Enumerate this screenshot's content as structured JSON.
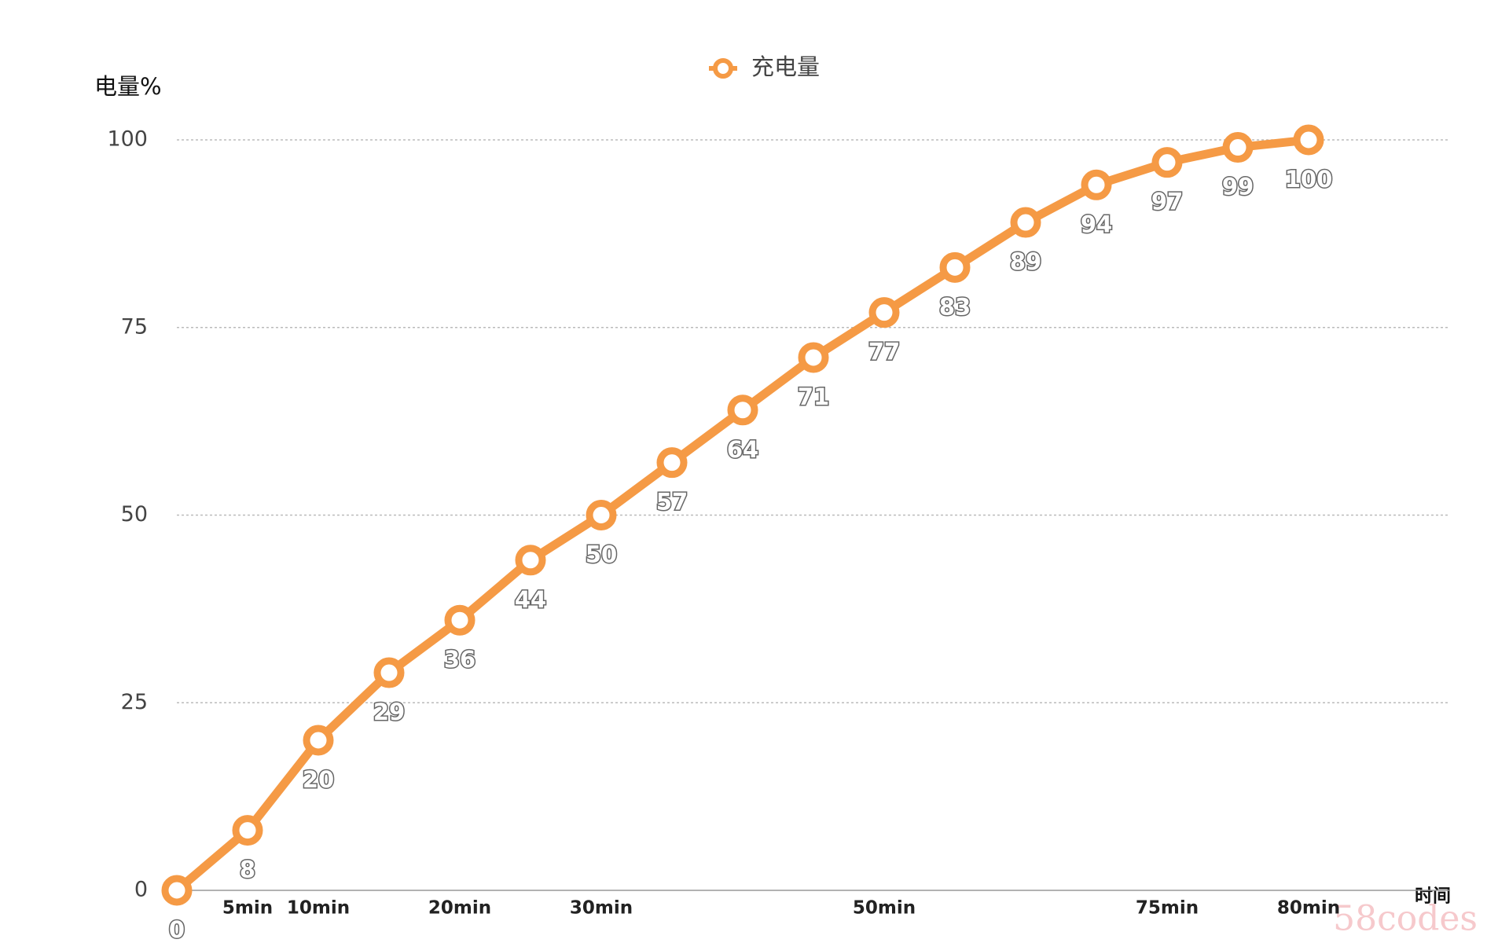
{
  "chart_data": {
    "type": "line",
    "y_label": "电量%",
    "x_label": "时间",
    "watermark": "58codes",
    "categories": [
      null,
      "5min",
      "10min",
      null,
      "20min",
      null,
      "30min",
      null,
      null,
      null,
      "50min",
      null,
      null,
      null,
      "75min",
      null,
      "80min"
    ],
    "series": [
      {
        "name": "充电量",
        "color": "#f59a45",
        "values": [
          0,
          8,
          20,
          29,
          36,
          44,
          50,
          57,
          64,
          71,
          77,
          83,
          89,
          94,
          97,
          99,
          100
        ]
      }
    ],
    "ylim": [
      0,
      100
    ],
    "yticks": [
      0,
      25,
      50,
      75,
      100
    ],
    "grid": true,
    "legend": "top"
  }
}
